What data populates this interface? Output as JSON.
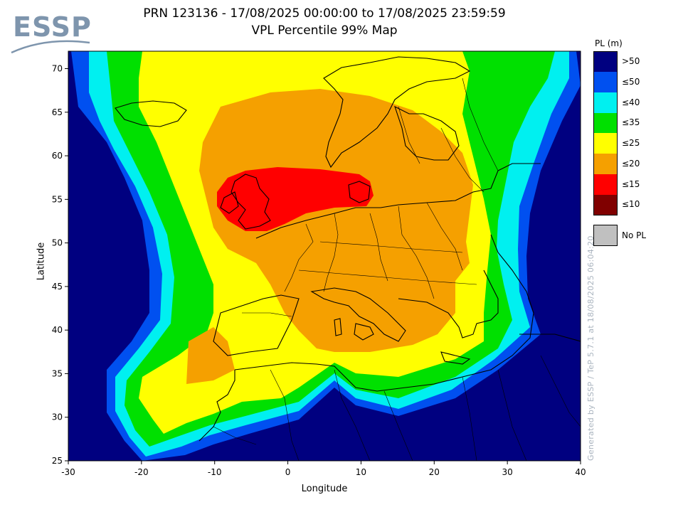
{
  "header": {
    "logo_text": "ESSP",
    "title_line1": "PRN 123136 - 17/08/2025 00:00:00 to 17/08/2025 23:59:59",
    "title_line2": "VPL Percentile 99% Map"
  },
  "axes": {
    "xlabel": "Longitude",
    "ylabel": "Latitude",
    "x_ticks": [
      -30,
      -20,
      -10,
      0,
      10,
      20,
      30,
      40
    ],
    "y_ticks": [
      25,
      30,
      35,
      40,
      45,
      50,
      55,
      60,
      65,
      70
    ],
    "xlim": [
      -30,
      40
    ],
    "ylim": [
      25,
      72
    ]
  },
  "legend": {
    "title": "PL (m)",
    "items": [
      {
        "label": ">50",
        "color": "#000080"
      },
      {
        "label": "≤50",
        "color": "#0050f0"
      },
      {
        "label": "≤40",
        "color": "#00f0f0"
      },
      {
        "label": "≤35",
        "color": "#00e000"
      },
      {
        "label": "≤25",
        "color": "#ffff00"
      },
      {
        "label": "≤20",
        "color": "#f5a000"
      },
      {
        "label": "≤15",
        "color": "#ff0000"
      },
      {
        "label": "≤10",
        "color": "#800000"
      }
    ],
    "no_pl_label": "No PL",
    "no_pl_color": "#c0c0c0"
  },
  "credit": "Generated by ESSP / TeP 5.7.1 at 18/08/2025 06:04:20",
  "map_colors": {
    "gt50": "#000080",
    "le50": "#0050f0",
    "le40": "#00f0f0",
    "le35": "#00e000",
    "le25": "#ffff00",
    "le20": "#f5a000",
    "le15": "#ff0000"
  }
}
